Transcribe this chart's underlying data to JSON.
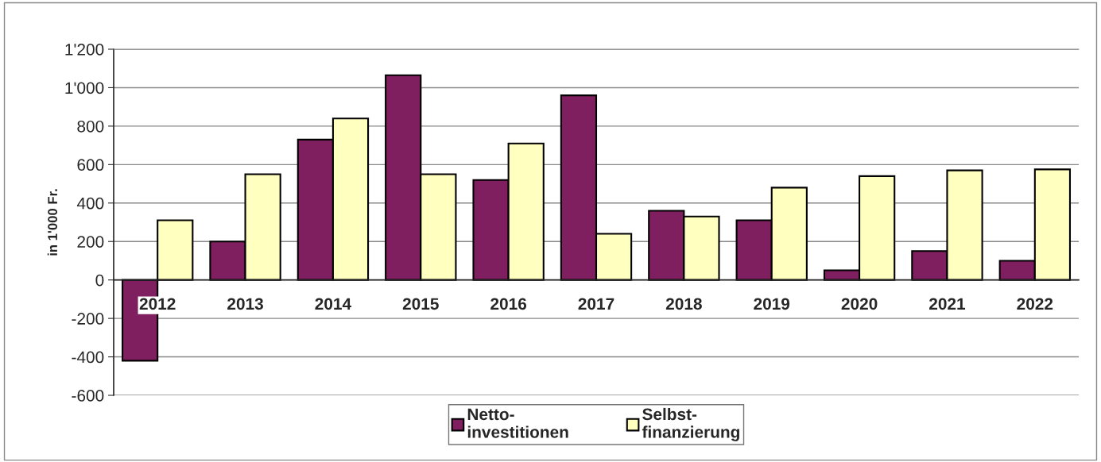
{
  "chart_data": {
    "type": "bar",
    "ylabel": "in 1'000 Fr.",
    "categories": [
      "2012",
      "2013",
      "2014",
      "2015",
      "2016",
      "2017",
      "2018",
      "2019",
      "2020",
      "2021",
      "2022"
    ],
    "series": [
      {
        "name": "Netto-\ninvestitionen",
        "color": "#7f1f5f",
        "values": [
          -420,
          200,
          730,
          1065,
          520,
          960,
          360,
          310,
          50,
          150,
          100
        ]
      },
      {
        "name": "Selbst-\nfinanzierung",
        "color": "#ffffc0",
        "values": [
          310,
          550,
          840,
          550,
          710,
          240,
          330,
          480,
          540,
          570,
          575
        ]
      }
    ],
    "ylim": [
      -600,
      1200
    ],
    "yticks": [
      -600,
      -400,
      -200,
      0,
      200,
      400,
      600,
      800,
      {
        "value": 1000,
        "label": "1'000"
      },
      {
        "value": 1200,
        "label": "1'200"
      }
    ],
    "grid": "y",
    "legend": "bottom"
  }
}
